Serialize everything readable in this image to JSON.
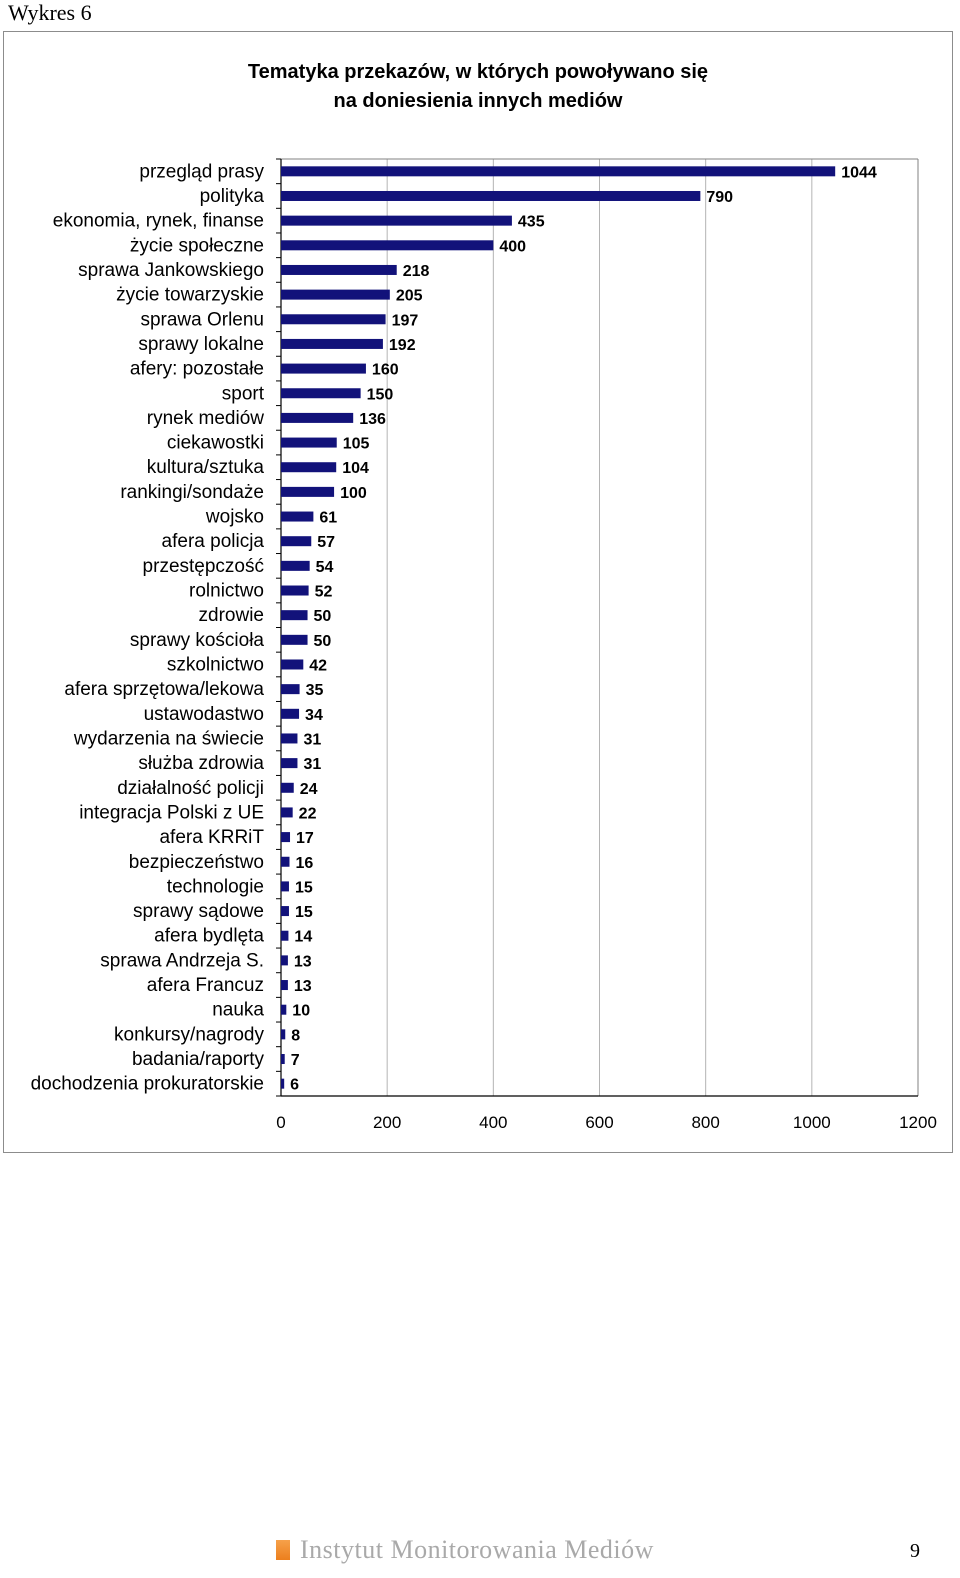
{
  "document": {
    "caption": "Wykres 6",
    "footer_brand": "Instytut Monitorowania Mediów",
    "page_number": "9"
  },
  "colors": {
    "bar": "#12127a",
    "grid": "#b4b4b4",
    "axis": "#808080"
  },
  "chart_data": {
    "type": "bar",
    "orientation": "horizontal",
    "title_lines": [
      "Tematyka przekazów, w których powoływano się",
      "na doniesienia innych mediów"
    ],
    "categories": [
      "przegląd prasy",
      "polityka",
      "ekonomia, rynek, finanse",
      "życie społeczne",
      "sprawa Jankowskiego",
      "życie towarzyskie",
      "sprawa Orlenu",
      "sprawy lokalne",
      "afery: pozostałe",
      "sport",
      "rynek mediów",
      "ciekawostki",
      "kultura/sztuka",
      "rankingi/sondaże",
      "wojsko",
      "afera policja",
      "przestępczość",
      "rolnictwo",
      "zdrowie",
      "sprawy kościoła",
      "szkolnictwo",
      "afera sprzętowa/lekowa",
      "ustawodastwo",
      "wydarzenia na świecie",
      "służba zdrowia",
      "działalność policji",
      "integracja Polski z UE",
      "afera KRRiT",
      "bezpieczeństwo",
      "technologie",
      "sprawy sądowe",
      "afera bydlęta",
      "sprawa Andrzeja S.",
      "afera Francuz",
      "nauka",
      "konkursy/nagrody",
      "badania/raporty",
      "dochodzenia prokuratorskie"
    ],
    "values": [
      1044,
      790,
      435,
      400,
      218,
      205,
      197,
      192,
      160,
      150,
      136,
      105,
      104,
      100,
      61,
      57,
      54,
      52,
      50,
      50,
      42,
      35,
      34,
      31,
      31,
      24,
      22,
      17,
      16,
      15,
      15,
      14,
      13,
      13,
      10,
      8,
      7,
      6
    ],
    "xlim": [
      0,
      1200
    ],
    "xticks": [
      "0",
      "200",
      "400",
      "600",
      "800",
      "1000",
      "1200"
    ],
    "grid": "vertical",
    "legend": "none",
    "data_labels": true
  }
}
